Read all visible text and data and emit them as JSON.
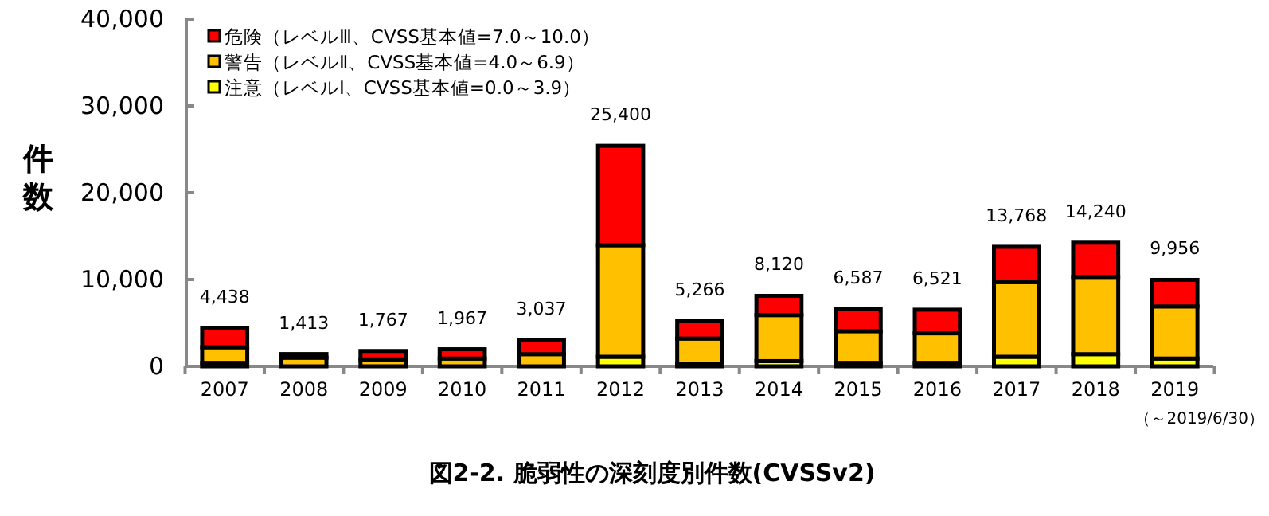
{
  "chart_data": {
    "type": "bar",
    "stacked": true,
    "title": "図2-2. 脆弱性の深刻度別件数(CVSSv2)",
    "ylabel": "件数",
    "categories": [
      "2007",
      "2008",
      "2009",
      "2010",
      "2011",
      "2012",
      "2013",
      "2014",
      "2015",
      "2016",
      "2017",
      "2018",
      "2019"
    ],
    "series": [
      {
        "name": "注意（レベルⅠ、CVSS基本値=0.0～3.9）",
        "color": "#ffff00",
        "values": [
          400,
          null,
          null,
          null,
          null,
          1100,
          300,
          600,
          400,
          400,
          1100,
          1400,
          900
        ]
      },
      {
        "name": "警告（レベルⅡ、CVSS基本値=4.0～6.9）",
        "color": "#ffc000",
        "values": [
          1800,
          1000,
          800,
          900,
          1400,
          12850,
          2900,
          5300,
          3650,
          3400,
          8600,
          8900,
          6000
        ]
      },
      {
        "name": "危険（レベルⅢ、CVSS基本値=7.0～10.0）",
        "color": "#ff0000",
        "values": [
          2238,
          413,
          967,
          1067,
          1637,
          11450,
          2066,
          2220,
          2537,
          2721,
          4068,
          3940,
          3056
        ]
      }
    ],
    "totals": [
      "4,438",
      "1,413",
      "1,767",
      "1,967",
      "3,037",
      "25,400",
      "5,266",
      "8,120",
      "6,587",
      "6,521",
      "13,768",
      "14,240",
      "9,956"
    ],
    "ylim": [
      0,
      40000
    ],
    "yticks": [
      {
        "value": 0,
        "label": "0"
      },
      {
        "value": 10000,
        "label": "10,000"
      },
      {
        "value": 20000,
        "label": "20,000"
      },
      {
        "value": 30000,
        "label": "30,000"
      },
      {
        "value": 40000,
        "label": "40,000"
      }
    ],
    "legend": "top left",
    "grid": false,
    "annotations": [
      "（～2019/6/30）"
    ]
  }
}
